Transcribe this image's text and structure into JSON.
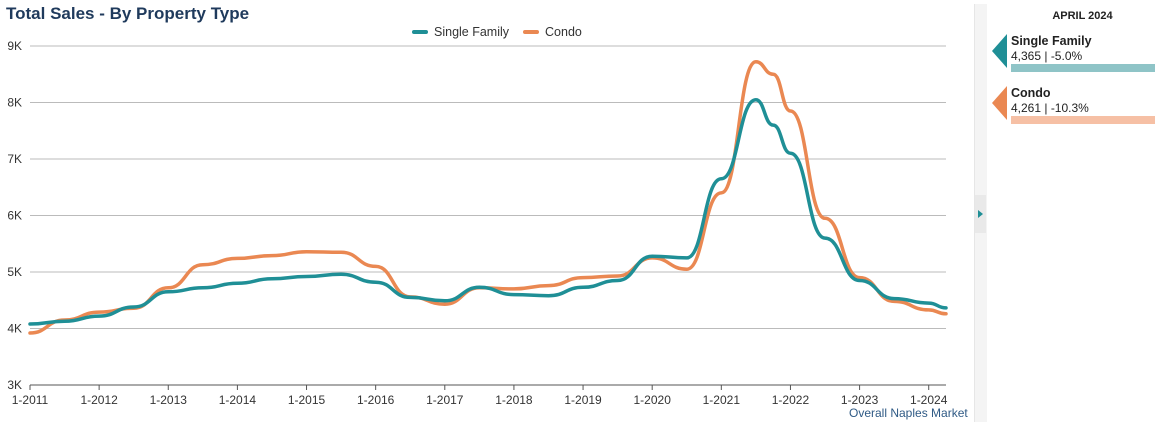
{
  "title": "Total Sales - By Property Type",
  "footer_note": "Overall Naples Market",
  "colors": {
    "single_family": "#1f8f96",
    "condo": "#ea8852",
    "single_family_bar": "#8fc4c7",
    "condo_bar": "#f6c0a5",
    "grid": "#bbbbbb",
    "axis_text": "#333333"
  },
  "side_panel": {
    "date": "APRIL 2024",
    "cards": [
      {
        "name": "Single Family",
        "value": "4,365 | -5.0%"
      },
      {
        "name": "Condo",
        "value": "4,261 | -10.3%"
      }
    ]
  },
  "chart_data": {
    "type": "line",
    "title": "Total Sales - By Property Type",
    "ylim": [
      3000,
      9000
    ],
    "yticks": [
      3000,
      4000,
      5000,
      6000,
      7000,
      8000,
      9000
    ],
    "ytick_labels": [
      "3K",
      "4K",
      "5K",
      "6K",
      "7K",
      "8K",
      "9K"
    ],
    "xlim": [
      "2011-01",
      "2024-04"
    ],
    "xtick_labels": [
      "1-2011",
      "1-2012",
      "1-2013",
      "1-2014",
      "1-2015",
      "1-2016",
      "1-2017",
      "1-2018",
      "1-2019",
      "1-2020",
      "1-2021",
      "1-2022",
      "1-2023",
      "1-2024"
    ],
    "grid": true,
    "legend_position": "top-center",
    "series": [
      {
        "name": "Single Family",
        "points": [
          [
            "2011-01",
            4080
          ],
          [
            "2011-07",
            4130
          ],
          [
            "2012-01",
            4220
          ],
          [
            "2012-07",
            4380
          ],
          [
            "2013-01",
            4650
          ],
          [
            "2013-07",
            4720
          ],
          [
            "2014-01",
            4800
          ],
          [
            "2014-07",
            4880
          ],
          [
            "2015-01",
            4920
          ],
          [
            "2015-07",
            4960
          ],
          [
            "2016-01",
            4820
          ],
          [
            "2016-07",
            4550
          ],
          [
            "2017-01",
            4490
          ],
          [
            "2017-07",
            4730
          ],
          [
            "2018-01",
            4600
          ],
          [
            "2018-07",
            4580
          ],
          [
            "2019-01",
            4730
          ],
          [
            "2019-07",
            4850
          ],
          [
            "2020-01",
            5280
          ],
          [
            "2020-07",
            5250
          ],
          [
            "2021-01",
            6650
          ],
          [
            "2021-07",
            8050
          ],
          [
            "2021-10",
            7600
          ],
          [
            "2022-01",
            7100
          ],
          [
            "2022-07",
            5600
          ],
          [
            "2023-01",
            4850
          ],
          [
            "2023-07",
            4530
          ],
          [
            "2024-01",
            4450
          ],
          [
            "2024-04",
            4365
          ]
        ]
      },
      {
        "name": "Condo",
        "points": [
          [
            "2011-01",
            3920
          ],
          [
            "2011-07",
            4150
          ],
          [
            "2012-01",
            4290
          ],
          [
            "2012-07",
            4360
          ],
          [
            "2013-01",
            4720
          ],
          [
            "2013-07",
            5130
          ],
          [
            "2014-01",
            5240
          ],
          [
            "2014-07",
            5290
          ],
          [
            "2015-01",
            5360
          ],
          [
            "2015-07",
            5350
          ],
          [
            "2016-01",
            5100
          ],
          [
            "2016-07",
            4560
          ],
          [
            "2017-01",
            4430
          ],
          [
            "2017-07",
            4720
          ],
          [
            "2018-01",
            4700
          ],
          [
            "2018-07",
            4760
          ],
          [
            "2019-01",
            4900
          ],
          [
            "2019-07",
            4930
          ],
          [
            "2020-01",
            5250
          ],
          [
            "2020-07",
            5050
          ],
          [
            "2021-01",
            6400
          ],
          [
            "2021-07",
            8720
          ],
          [
            "2021-10",
            8500
          ],
          [
            "2022-01",
            7850
          ],
          [
            "2022-07",
            5950
          ],
          [
            "2023-01",
            4900
          ],
          [
            "2023-07",
            4480
          ],
          [
            "2024-01",
            4330
          ],
          [
            "2024-04",
            4261
          ]
        ]
      }
    ]
  }
}
